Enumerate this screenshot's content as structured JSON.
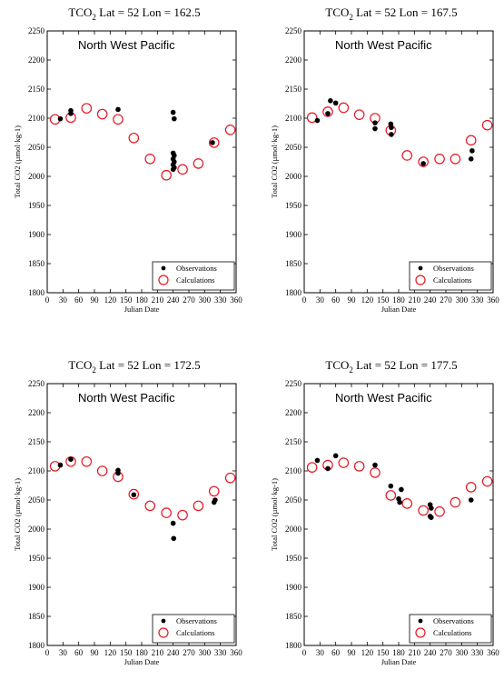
{
  "chart_data": [
    {
      "type": "scatter",
      "title_prefix": "TCO",
      "title_sub": "2",
      "title_rest": "  Lat =  52 Lon = 162.5",
      "region_label": "North West Pacific",
      "xlabel": "Julian Date",
      "ylabel": "Total CO2 (µmol·kg-1)",
      "xlim": [
        0,
        360
      ],
      "ylim": [
        1800,
        2250
      ],
      "xticks": [
        0,
        30,
        60,
        90,
        120,
        150,
        180,
        210,
        240,
        270,
        300,
        330,
        360
      ],
      "yticks": [
        1800,
        1850,
        1900,
        1950,
        2000,
        2050,
        2100,
        2150,
        2200,
        2250
      ],
      "legend_position": "bottom-right",
      "series": [
        {
          "name": "Observations",
          "marker": "filled-dot",
          "color": "#000000",
          "points": [
            [
              25,
              2099
            ],
            [
              45,
              2108
            ],
            [
              45,
              2113
            ],
            [
              135,
              2115
            ],
            [
              240,
              2110
            ],
            [
              242,
              2099
            ],
            [
              240,
              2040
            ],
            [
              242,
              2036
            ],
            [
              240,
              2030
            ],
            [
              242,
              2025
            ],
            [
              240,
              2020
            ],
            [
              242,
              2015
            ],
            [
              240,
              2012
            ],
            [
              315,
              2058
            ]
          ]
        },
        {
          "name": "Calculations",
          "marker": "open-circle",
          "color": "#e8141e",
          "points": [
            [
              15,
              2098
            ],
            [
              45,
              2101
            ],
            [
              75,
              2117
            ],
            [
              105,
              2107
            ],
            [
              135,
              2098
            ],
            [
              165,
              2066
            ],
            [
              196,
              2030
            ],
            [
              227,
              2002
            ],
            [
              258,
              2012
            ],
            [
              288,
              2022
            ],
            [
              318,
              2058
            ],
            [
              349,
              2080
            ]
          ]
        }
      ]
    },
    {
      "type": "scatter",
      "title_prefix": "TCO",
      "title_sub": "2",
      "title_rest": "  Lat =  52 Lon = 167.5",
      "region_label": "North West Pacific",
      "xlabel": "Julian Date",
      "ylabel": "Total CO2 (µmol·kg-1)",
      "xlim": [
        0,
        360
      ],
      "ylim": [
        1800,
        2250
      ],
      "xticks": [
        0,
        30,
        60,
        90,
        120,
        150,
        180,
        210,
        240,
        270,
        300,
        330,
        360
      ],
      "yticks": [
        1800,
        1850,
        1900,
        1950,
        2000,
        2050,
        2100,
        2150,
        2200,
        2250
      ],
      "legend_position": "bottom-right",
      "series": [
        {
          "name": "Observations",
          "marker": "filled-dot",
          "color": "#000000",
          "points": [
            [
              25,
              2096
            ],
            [
              45,
              2108
            ],
            [
              50,
              2130
            ],
            [
              60,
              2126
            ],
            [
              135,
              2082
            ],
            [
              135,
              2092
            ],
            [
              165,
              2090
            ],
            [
              166,
              2072
            ],
            [
              166,
              2084
            ],
            [
              227,
              2022
            ],
            [
              318,
              2030
            ],
            [
              320,
              2044
            ]
          ]
        },
        {
          "name": "Calculations",
          "marker": "open-circle",
          "color": "#e8141e",
          "points": [
            [
              15,
              2101
            ],
            [
              45,
              2111
            ],
            [
              75,
              2118
            ],
            [
              105,
              2106
            ],
            [
              135,
              2100
            ],
            [
              165,
              2079
            ],
            [
              196,
              2036
            ],
            [
              227,
              2025
            ],
            [
              258,
              2030
            ],
            [
              288,
              2030
            ],
            [
              318,
              2062
            ],
            [
              349,
              2088
            ]
          ]
        }
      ]
    },
    {
      "type": "scatter",
      "title_prefix": "TCO",
      "title_sub": "2",
      "title_rest": "  Lat =  52 Lon = 172.5",
      "region_label": "North West Pacific",
      "xlabel": "Julian Date",
      "ylabel": "Total CO2 (µmol·kg-1)",
      "xlim": [
        0,
        360
      ],
      "ylim": [
        1800,
        2250
      ],
      "xticks": [
        0,
        30,
        60,
        90,
        120,
        150,
        180,
        210,
        240,
        270,
        300,
        330,
        360
      ],
      "yticks": [
        1800,
        1850,
        1900,
        1950,
        2000,
        2050,
        2100,
        2150,
        2200,
        2250
      ],
      "legend_position": "bottom-right",
      "series": [
        {
          "name": "Observations",
          "marker": "filled-dot",
          "color": "#000000",
          "points": [
            [
              25,
              2110
            ],
            [
              45,
              2120
            ],
            [
              135,
              2096
            ],
            [
              135,
              2101
            ],
            [
              165,
              2059
            ],
            [
              240,
              2010
            ],
            [
              241,
              1984
            ],
            [
              318,
              2046
            ],
            [
              320,
              2050
            ]
          ]
        },
        {
          "name": "Calculations",
          "marker": "open-circle",
          "color": "#e8141e",
          "points": [
            [
              15,
              2108
            ],
            [
              45,
              2116
            ],
            [
              75,
              2116
            ],
            [
              105,
              2100
            ],
            [
              135,
              2090
            ],
            [
              165,
              2060
            ],
            [
              196,
              2040
            ],
            [
              227,
              2028
            ],
            [
              258,
              2024
            ],
            [
              288,
              2040
            ],
            [
              318,
              2065
            ],
            [
              349,
              2088
            ]
          ]
        }
      ]
    },
    {
      "type": "scatter",
      "title_prefix": "TCO",
      "title_sub": "2",
      "title_rest": "  Lat =  52 Lon = 177.5",
      "region_label": "North West Pacific",
      "xlabel": "Julian Date",
      "ylabel": "Total CO2 (µmol·kg-1)",
      "xlim": [
        0,
        360
      ],
      "ylim": [
        1800,
        2250
      ],
      "xticks": [
        0,
        30,
        60,
        90,
        120,
        150,
        180,
        210,
        240,
        270,
        300,
        330,
        360
      ],
      "yticks": [
        1800,
        1850,
        1900,
        1950,
        2000,
        2050,
        2100,
        2150,
        2200,
        2250
      ],
      "legend_position": "bottom-right",
      "series": [
        {
          "name": "Observations",
          "marker": "filled-dot",
          "color": "#000000",
          "points": [
            [
              25,
              2118
            ],
            [
              45,
              2104
            ],
            [
              60,
              2126
            ],
            [
              135,
              2110
            ],
            [
              165,
              2074
            ],
            [
              185,
              2068
            ],
            [
              180,
              2052
            ],
            [
              182,
              2046
            ],
            [
              240,
              2042
            ],
            [
              242,
              2036
            ],
            [
              240,
              2022
            ],
            [
              242,
              2020
            ],
            [
              318,
              2050
            ]
          ]
        },
        {
          "name": "Calculations",
          "marker": "open-circle",
          "color": "#e8141e",
          "points": [
            [
              15,
              2106
            ],
            [
              45,
              2110
            ],
            [
              75,
              2114
            ],
            [
              105,
              2108
            ],
            [
              135,
              2097
            ],
            [
              165,
              2058
            ],
            [
              196,
              2044
            ],
            [
              227,
              2032
            ],
            [
              258,
              2030
            ],
            [
              288,
              2046
            ],
            [
              318,
              2072
            ],
            [
              349,
              2082
            ]
          ]
        }
      ]
    }
  ]
}
